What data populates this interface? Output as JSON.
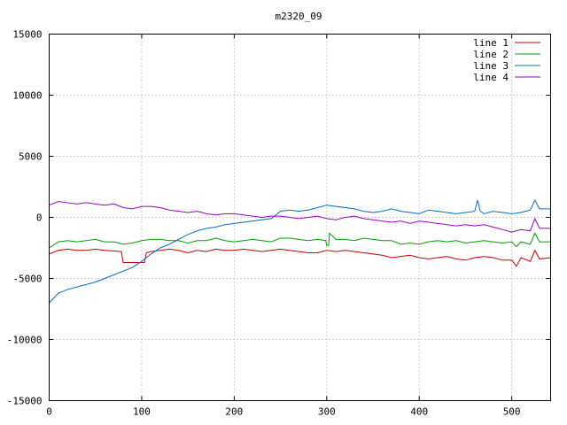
{
  "chart_data": {
    "type": "line",
    "title": "m2320_09",
    "xlabel": "",
    "ylabel": "",
    "xlim": [
      0,
      542
    ],
    "ylim": [
      -15000,
      15000
    ],
    "xticks": [
      0,
      100,
      200,
      300,
      400,
      500
    ],
    "yticks": [
      -15000,
      -10000,
      -5000,
      0,
      5000,
      10000,
      15000
    ],
    "grid": true,
    "legend_position": "top-right",
    "series": [
      {
        "name": "line 1",
        "color": "#cc0000",
        "x": [
          0,
          10,
          20,
          30,
          40,
          50,
          60,
          70,
          78,
          80,
          100,
          103,
          105,
          110,
          120,
          130,
          140,
          150,
          160,
          170,
          180,
          190,
          200,
          210,
          220,
          230,
          240,
          250,
          260,
          270,
          280,
          290,
          300,
          310,
          320,
          330,
          340,
          350,
          360,
          370,
          380,
          390,
          400,
          410,
          420,
          430,
          440,
          450,
          460,
          470,
          480,
          490,
          500,
          505,
          510,
          520,
          525,
          530,
          542
        ],
        "y": [
          -3000,
          -2700,
          -2600,
          -2700,
          -2700,
          -2600,
          -2700,
          -2750,
          -2800,
          -3700,
          -3700,
          -3700,
          -2900,
          -2800,
          -2700,
          -2600,
          -2700,
          -2900,
          -2700,
          -2800,
          -2600,
          -2700,
          -2700,
          -2600,
          -2700,
          -2800,
          -2700,
          -2600,
          -2700,
          -2800,
          -2900,
          -2900,
          -2700,
          -2800,
          -2700,
          -2800,
          -2900,
          -3000,
          -3100,
          -3300,
          -3200,
          -3100,
          -3300,
          -3400,
          -3300,
          -3200,
          -3400,
          -3500,
          -3300,
          -3200,
          -3300,
          -3500,
          -3500,
          -4000,
          -3300,
          -3600,
          -2700,
          -3400,
          -3300
        ]
      },
      {
        "name": "line 2",
        "color": "#00a000",
        "x": [
          0,
          10,
          20,
          30,
          40,
          50,
          60,
          70,
          80,
          90,
          100,
          110,
          120,
          130,
          140,
          150,
          160,
          170,
          180,
          190,
          200,
          210,
          220,
          230,
          240,
          250,
          260,
          270,
          280,
          290,
          299,
          300,
          302,
          303,
          310,
          320,
          330,
          340,
          350,
          360,
          370,
          380,
          390,
          400,
          410,
          420,
          430,
          440,
          450,
          460,
          470,
          480,
          490,
          500,
          505,
          510,
          520,
          525,
          530,
          542
        ],
        "y": [
          -2500,
          -2000,
          -1900,
          -2000,
          -1900,
          -1800,
          -2000,
          -2000,
          -2200,
          -2100,
          -1900,
          -1800,
          -1800,
          -1900,
          -1900,
          -2100,
          -1900,
          -1900,
          -1700,
          -1900,
          -2000,
          -1900,
          -1800,
          -1900,
          -2000,
          -1700,
          -1700,
          -1800,
          -1900,
          -1800,
          -1900,
          -2300,
          -2300,
          -1300,
          -1800,
          -1800,
          -1900,
          -1700,
          -1800,
          -1900,
          -1900,
          -2200,
          -2100,
          -2200,
          -2000,
          -1900,
          -2000,
          -1900,
          -2100,
          -2000,
          -1900,
          -2000,
          -2100,
          -2000,
          -2400,
          -2000,
          -2200,
          -1300,
          -2000,
          -2000
        ]
      },
      {
        "name": "line 3",
        "color": "#0070c0",
        "x": [
          0,
          10,
          20,
          30,
          40,
          50,
          60,
          70,
          80,
          90,
          100,
          110,
          120,
          130,
          140,
          150,
          160,
          170,
          180,
          190,
          200,
          210,
          220,
          230,
          240,
          250,
          260,
          270,
          280,
          290,
          300,
          310,
          320,
          330,
          340,
          350,
          360,
          370,
          380,
          390,
          400,
          410,
          420,
          430,
          440,
          450,
          460,
          463,
          466,
          470,
          480,
          490,
          500,
          510,
          520,
          525,
          530,
          542
        ],
        "y": [
          -7000,
          -6200,
          -5900,
          -5700,
          -5500,
          -5300,
          -5000,
          -4700,
          -4400,
          -4100,
          -3600,
          -3000,
          -2500,
          -2200,
          -1800,
          -1400,
          -1100,
          -900,
          -800,
          -600,
          -500,
          -400,
          -300,
          -200,
          -100,
          500,
          600,
          500,
          600,
          800,
          1000,
          900,
          800,
          700,
          500,
          400,
          500,
          700,
          500,
          400,
          300,
          600,
          500,
          400,
          300,
          400,
          500,
          1400,
          500,
          300,
          500,
          400,
          300,
          400,
          600,
          1400,
          700,
          700
        ]
      },
      {
        "name": "line 4",
        "color": "#9900cc",
        "x": [
          0,
          10,
          20,
          30,
          40,
          50,
          60,
          70,
          80,
          90,
          100,
          110,
          120,
          130,
          140,
          150,
          160,
          170,
          180,
          190,
          200,
          210,
          220,
          230,
          240,
          250,
          260,
          270,
          280,
          290,
          300,
          310,
          320,
          330,
          340,
          350,
          360,
          370,
          380,
          390,
          400,
          410,
          420,
          430,
          440,
          450,
          460,
          470,
          480,
          490,
          500,
          510,
          520,
          525,
          530,
          542
        ],
        "y": [
          1000,
          1300,
          1200,
          1100,
          1200,
          1100,
          1000,
          1100,
          800,
          700,
          900,
          900,
          800,
          600,
          500,
          400,
          500,
          300,
          200,
          300,
          300,
          200,
          100,
          0,
          100,
          100,
          0,
          -100,
          0,
          100,
          -100,
          -200,
          0,
          100,
          -100,
          -200,
          -300,
          -400,
          -300,
          -500,
          -300,
          -400,
          -500,
          -600,
          -700,
          -600,
          -700,
          -600,
          -800,
          -1000,
          -1200,
          -1000,
          -1100,
          -100,
          -900,
          -900
        ]
      }
    ]
  }
}
